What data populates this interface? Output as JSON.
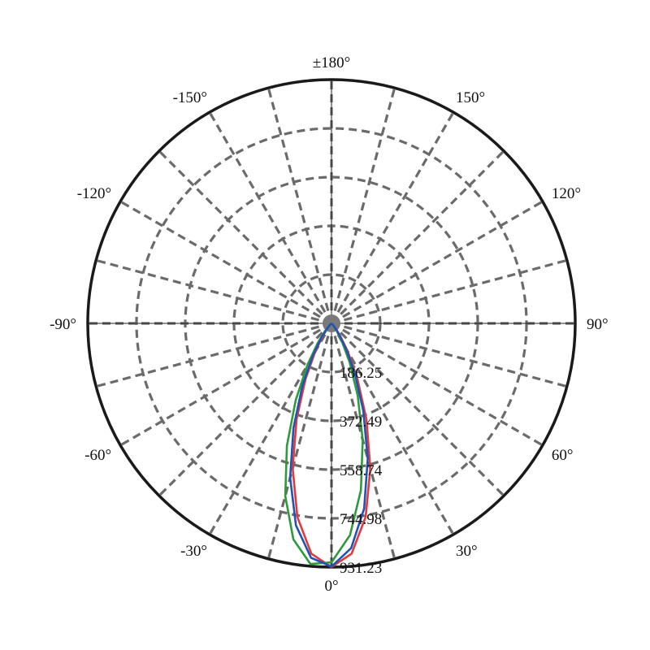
{
  "chart_data": {
    "type": "polar-line",
    "title": "",
    "angle_unit": "degrees",
    "zero_direction": "bottom",
    "angle_direction": "clockwise-positive-to-right",
    "angle_tick_labels": [
      {
        "angle": 0,
        "label": "0°"
      },
      {
        "angle": 30,
        "label": "30°"
      },
      {
        "angle": 60,
        "label": "60°"
      },
      {
        "angle": 90,
        "label": "90°"
      },
      {
        "angle": 120,
        "label": "120°"
      },
      {
        "angle": 150,
        "label": "150°"
      },
      {
        "angle": 180,
        "label": "±180°"
      },
      {
        "angle": -150,
        "label": "-150°"
      },
      {
        "angle": -120,
        "label": "-120°"
      },
      {
        "angle": -90,
        "label": "-90°"
      },
      {
        "angle": -60,
        "label": "-60°"
      },
      {
        "angle": -30,
        "label": "-30°"
      }
    ],
    "radial_ticks": [
      186.25,
      372.49,
      558.74,
      744.98,
      931.23
    ],
    "radial_tick_labels": [
      "186.25",
      "372.49",
      "558.74",
      "744.98",
      "931.23"
    ],
    "rlim": [
      0,
      931.23
    ],
    "grid": true,
    "grid_angle_step": 15,
    "angles": [
      -50,
      -45,
      -40,
      -35,
      -30,
      -25,
      -20,
      -15,
      -10,
      -5,
      0,
      5,
      10,
      15,
      20,
      25,
      30,
      35,
      40,
      45,
      50
    ],
    "series": [
      {
        "color": "#e03a3a",
        "values": [
          2,
          7,
          22,
          57,
          124,
          235,
          390,
          573,
          751,
          883,
          931,
          883,
          751,
          573,
          390,
          235,
          124,
          57,
          22,
          7,
          2
        ]
      },
      {
        "color": "#2f9a3c",
        "values": [
          4,
          15,
          40,
          93,
          185,
          323,
          498,
          683,
          838,
          923,
          913,
          812,
          647,
          461,
          292,
          163,
          79,
          33,
          12,
          3,
          1
        ]
      },
      {
        "color": "#2352b5",
        "values": [
          3,
          9,
          27,
          67,
          142,
          263,
          425,
          610,
          783,
          899,
          929,
          862,
          718,
          535,
          356,
          209,
          108,
          48,
          18,
          6,
          2
        ]
      }
    ]
  }
}
